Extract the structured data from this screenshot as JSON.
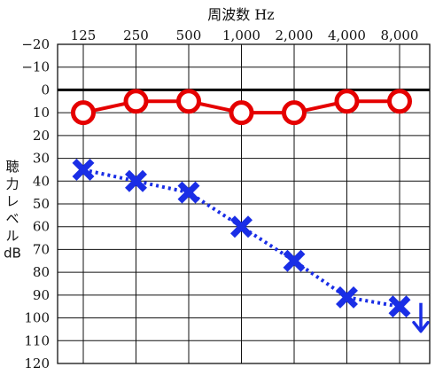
{
  "chart_data": {
    "type": "line",
    "title": "周波数 Hz",
    "ylabel": "聴力レベル dB",
    "ylabel_lines": [
      "聴",
      "力",
      "レ",
      "ベ",
      "ル",
      "dB"
    ],
    "x": [
      125,
      250,
      500,
      1000,
      2000,
      4000,
      8000
    ],
    "xticklabels": [
      "125",
      "250",
      "500",
      "1,000",
      "2,000",
      "4,000",
      "8,000"
    ],
    "yticks": [
      -20,
      -10,
      0,
      10,
      20,
      30,
      40,
      50,
      60,
      70,
      80,
      90,
      100,
      110,
      120
    ],
    "yticklabels": [
      "−20",
      "−10",
      "0",
      "10",
      "20",
      "30",
      "40",
      "50",
      "60",
      "70",
      "80",
      "90",
      "100",
      "110",
      "120"
    ],
    "ylim": [
      -20,
      120
    ],
    "y_inverted": true,
    "x_scale": "log2",
    "grid": true,
    "reference_line_y": 0,
    "series": [
      {
        "values": [
          10,
          5,
          5,
          10,
          10,
          5,
          5
        ],
        "color": "#e50000",
        "marker": "circle",
        "line": "solid"
      },
      {
        "values": [
          35,
          40,
          45,
          60,
          75,
          91,
          95
        ],
        "color": "#1a2ee6",
        "marker": "cross",
        "line": "dotted",
        "scale_out_arrow_at": 8000
      }
    ]
  }
}
